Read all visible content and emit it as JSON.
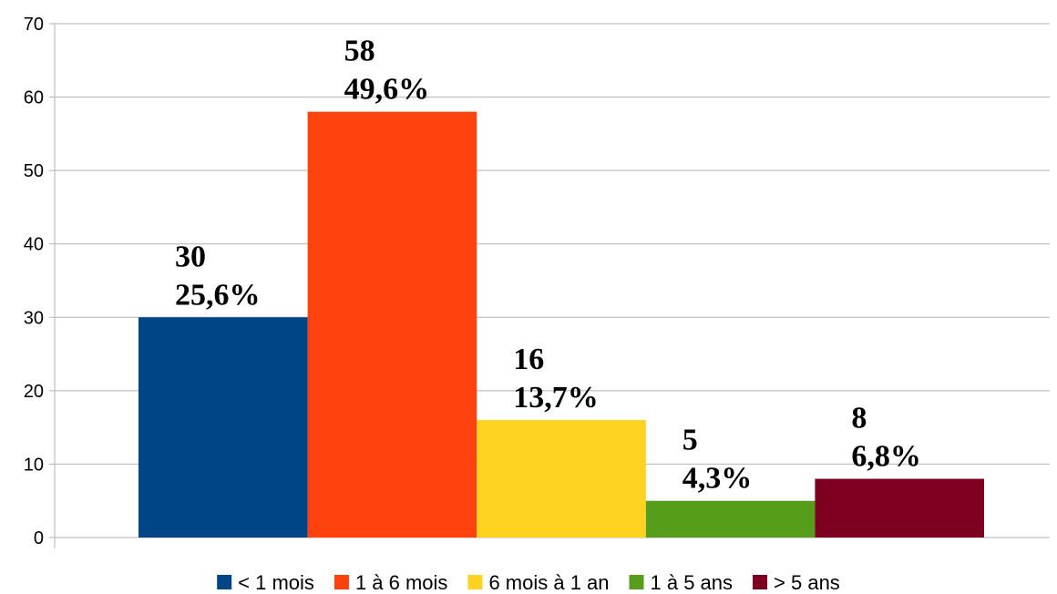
{
  "chart_data": {
    "type": "bar",
    "categories": [
      "< 1 mois",
      "1 à 6 mois",
      "6 mois à 1 an",
      "1 à 5 ans",
      "> 5 ans"
    ],
    "values": [
      30,
      58,
      16,
      5,
      8
    ],
    "percent_labels": [
      "25,6%",
      "49,6%",
      "13,7%",
      "4,3%",
      "6,8%"
    ],
    "colors": [
      "#004586",
      "#ff420e",
      "#ffd320",
      "#579d1c",
      "#7e0021"
    ],
    "ylim": [
      0,
      70
    ],
    "yticks": [
      "0",
      "10",
      "20",
      "30",
      "40",
      "50",
      "60",
      "70"
    ],
    "grid": true,
    "legend_position": "bottom"
  }
}
